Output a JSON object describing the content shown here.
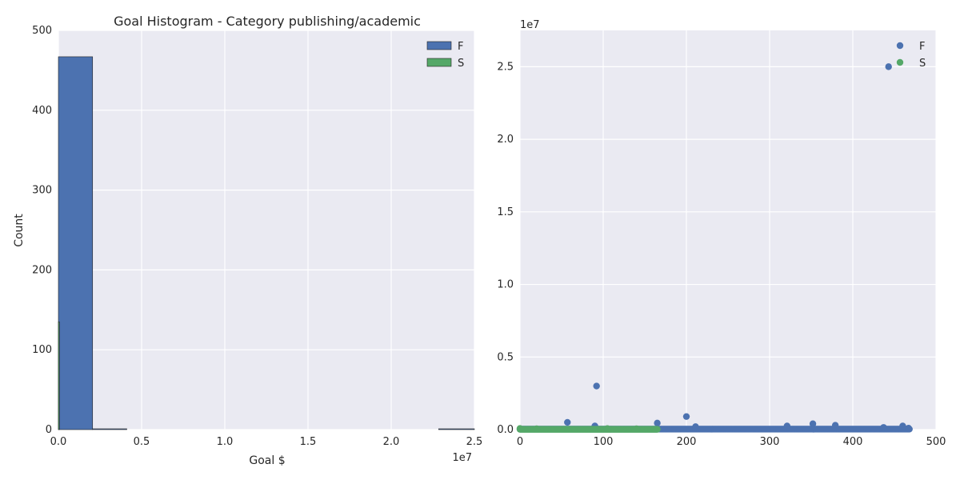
{
  "colors": {
    "background": "#eaeaf2",
    "grid": "#ffffff",
    "series_F": "#4c72b0",
    "series_S": "#55a868",
    "text": "#262626"
  },
  "chart_data": [
    {
      "type": "bar",
      "subtype": "histogram",
      "title": "Goal Histogram - Category publishing/academic",
      "xlabel": "Goal $",
      "ylabel": "Count",
      "x_offset_label": "1e7",
      "xlim": [
        0,
        25000000
      ],
      "ylim": [
        0,
        500
      ],
      "x_ticks": [
        0,
        5000000,
        10000000,
        15000000,
        20000000,
        25000000
      ],
      "x_tick_labels": [
        "0.0",
        "0.5",
        "1.0",
        "1.5",
        "2.0",
        "2.5"
      ],
      "y_ticks": [
        0,
        100,
        200,
        300,
        400,
        500
      ],
      "y_tick_labels": [
        "0",
        "100",
        "200",
        "300",
        "400",
        "500"
      ],
      "grid": true,
      "legend": "top-right",
      "series": [
        {
          "name": "F",
          "bins": [
            {
              "x0": 0,
              "x1": 2055000,
              "count": 467
            },
            {
              "x0": 2055000,
              "x1": 4110000,
              "count": 1
            },
            {
              "x0": 22850000,
              "x1": 25000000,
              "count": 1
            }
          ]
        },
        {
          "name": "S",
          "bins": [
            {
              "x0": 0,
              "x1": 60000,
              "count": 135
            }
          ]
        }
      ]
    },
    {
      "type": "scatter",
      "title": "",
      "xlabel": "",
      "ylabel": "",
      "y_offset_label": "1e7",
      "xlim": [
        0,
        500
      ],
      "ylim": [
        0,
        27500000
      ],
      "x_ticks": [
        0,
        100,
        200,
        300,
        400,
        500
      ],
      "x_tick_labels": [
        "0",
        "100",
        "200",
        "300",
        "400",
        "500"
      ],
      "y_ticks": [
        0,
        5000000,
        10000000,
        15000000,
        20000000,
        25000000
      ],
      "y_tick_labels": [
        "0.0",
        "0.5",
        "1.0",
        "1.5",
        "2.0",
        "2.5"
      ],
      "grid": true,
      "legend": "top-right",
      "series": [
        {
          "name": "F",
          "x_range": [
            0,
            468
          ],
          "baseline": 30000,
          "points": [
            {
              "x": 57,
              "y": 500000
            },
            {
              "x": 90,
              "y": 250000
            },
            {
              "x": 92,
              "y": 3000000
            },
            {
              "x": 165,
              "y": 450000
            },
            {
              "x": 200,
              "y": 900000
            },
            {
              "x": 211,
              "y": 200000
            },
            {
              "x": 321,
              "y": 250000
            },
            {
              "x": 352,
              "y": 400000
            },
            {
              "x": 379,
              "y": 300000
            },
            {
              "x": 437,
              "y": 150000
            },
            {
              "x": 443,
              "y": 25000000
            },
            {
              "x": 460,
              "y": 250000
            },
            {
              "x": 467,
              "y": 100000
            }
          ]
        },
        {
          "name": "S",
          "x_range": [
            0,
            165
          ],
          "baseline": 20000,
          "points": [
            {
              "x": 0,
              "y": 80000
            },
            {
              "x": 20,
              "y": 60000
            },
            {
              "x": 105,
              "y": 70000
            },
            {
              "x": 140,
              "y": 60000
            }
          ]
        }
      ]
    }
  ]
}
